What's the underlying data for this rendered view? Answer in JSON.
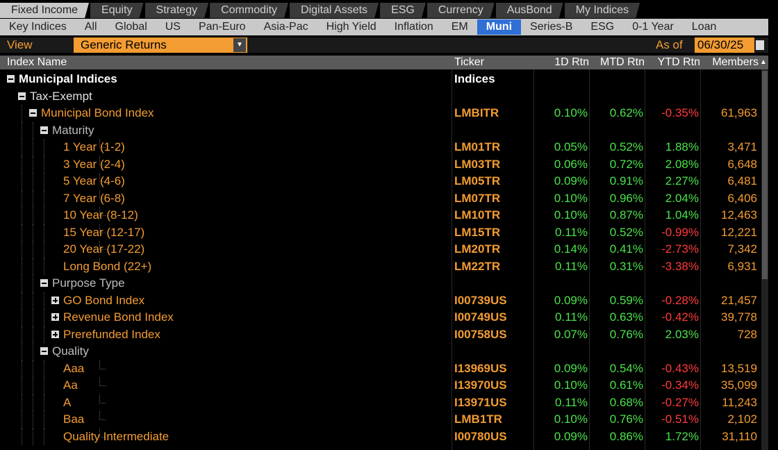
{
  "tabs": [
    "Fixed Income",
    "Equity",
    "Strategy",
    "Commodity",
    "Digital Assets",
    "ESG",
    "Currency",
    "AusBond",
    "My Indices"
  ],
  "selected_tab": "Fixed Income",
  "subtabs": [
    "Key Indices",
    "All",
    "Global",
    "US",
    "Pan-Euro",
    "Asia-Pac",
    "High Yield",
    "Inflation",
    "EM",
    "Muni",
    "Series-B",
    "ESG",
    "0-1 Year",
    "Loan"
  ],
  "selected_subtab": "Muni",
  "view": {
    "label": "View",
    "dropdown": "Generic Returns",
    "as_of_label": "As of",
    "as_of_date": "06/30/25"
  },
  "table": {
    "columns": [
      "Index Name",
      "Ticker",
      "1D Rtn",
      "MTD Rtn",
      "YTD Rtn",
      "Members"
    ],
    "rows": [
      {
        "name": "Municipal Indices",
        "level": 0,
        "toggle": "minus",
        "color": "#ffffff",
        "ticker": "Indices"
      },
      {
        "name": "Tax-Exempt",
        "level": 1,
        "toggle": "minus",
        "color": "#e0e0e0"
      },
      {
        "name": "Municipal Bond Index",
        "level": 2,
        "toggle": "minus",
        "color": "#f39c32",
        "ticker": "LMBITR",
        "d1": "0.10%",
        "mtd": "0.62%",
        "ytd": "-0.35%",
        "members": "61,963"
      },
      {
        "name": "Maturity",
        "level": 3,
        "toggle": "minus",
        "color": "#bdbdbd"
      },
      {
        "name": "1 Year (1-2)",
        "level": 4,
        "color": "#f39c32",
        "ticker": "LM01TR",
        "d1": "0.05%",
        "mtd": "0.52%",
        "ytd": "1.88%",
        "members": "3,471"
      },
      {
        "name": "3 Year (2-4)",
        "level": 4,
        "color": "#f39c32",
        "ticker": "LM03TR",
        "d1": "0.06%",
        "mtd": "0.72%",
        "ytd": "2.08%",
        "members": "6,648"
      },
      {
        "name": "5 Year (4-6)",
        "level": 4,
        "color": "#f39c32",
        "ticker": "LM05TR",
        "d1": "0.09%",
        "mtd": "0.91%",
        "ytd": "2.27%",
        "members": "6,481"
      },
      {
        "name": "7 Year (6-8)",
        "level": 4,
        "color": "#f39c32",
        "ticker": "LM07TR",
        "d1": "0.10%",
        "mtd": "0.96%",
        "ytd": "2.04%",
        "members": "6,406"
      },
      {
        "name": "10 Year (8-12)",
        "level": 4,
        "color": "#f39c32",
        "ticker": "LM10TR",
        "d1": "0.10%",
        "mtd": "0.87%",
        "ytd": "1.04%",
        "members": "12,463"
      },
      {
        "name": "15 Year (12-17)",
        "level": 4,
        "color": "#f39c32",
        "ticker": "LM15TR",
        "d1": "0.11%",
        "mtd": "0.52%",
        "ytd": "-0.99%",
        "members": "12,221"
      },
      {
        "name": "20 Year (17-22)",
        "level": 4,
        "color": "#f39c32",
        "ticker": "LM20TR",
        "d1": "0.14%",
        "mtd": "0.41%",
        "ytd": "-2.73%",
        "members": "7,342"
      },
      {
        "name": "Long Bond (22+)",
        "level": 4,
        "color": "#f39c32",
        "ticker": "LM22TR",
        "d1": "0.11%",
        "mtd": "0.31%",
        "ytd": "-3.38%",
        "members": "6,931"
      },
      {
        "name": "Purpose Type",
        "level": 3,
        "toggle": "minus",
        "color": "#bdbdbd"
      },
      {
        "name": "GO Bond Index",
        "level": 4,
        "toggle": "plus",
        "color": "#f39c32",
        "ticker": "I00739US",
        "d1": "0.09%",
        "mtd": "0.59%",
        "ytd": "-0.28%",
        "members": "21,457"
      },
      {
        "name": "Revenue Bond Index",
        "level": 4,
        "toggle": "plus",
        "color": "#f39c32",
        "ticker": "I00749US",
        "d1": "0.11%",
        "mtd": "0.63%",
        "ytd": "-0.42%",
        "members": "39,778"
      },
      {
        "name": "Prerefunded Index",
        "level": 4,
        "toggle": "plus",
        "color": "#f39c32",
        "ticker": "I00758US",
        "d1": "0.07%",
        "mtd": "0.76%",
        "ytd": "2.03%",
        "members": "728"
      },
      {
        "name": "Quality",
        "level": 3,
        "toggle": "minus",
        "color": "#bdbdbd"
      },
      {
        "name": "Aaa",
        "level": 4,
        "color": "#f39c32",
        "ticker": "I13969US",
        "d1": "0.09%",
        "mtd": "0.54%",
        "ytd": "-0.43%",
        "members": "13,519"
      },
      {
        "name": "Aa",
        "level": 4,
        "color": "#f39c32",
        "ticker": "I13970US",
        "d1": "0.10%",
        "mtd": "0.61%",
        "ytd": "-0.34%",
        "members": "35,099"
      },
      {
        "name": "A",
        "level": 4,
        "color": "#f39c32",
        "ticker": "I13971US",
        "d1": "0.11%",
        "mtd": "0.68%",
        "ytd": "-0.27%",
        "members": "11,243"
      },
      {
        "name": "Baa",
        "level": 4,
        "color": "#f39c32",
        "ticker": "LMB1TR",
        "d1": "0.10%",
        "mtd": "0.76%",
        "ytd": "-0.51%",
        "members": "2,102"
      },
      {
        "name": "Quality Intermediate",
        "level": 4,
        "color": "#f39c32",
        "ticker": "I00780US",
        "d1": "0.09%",
        "mtd": "0.86%",
        "ytd": "1.72%",
        "members": "31,110"
      }
    ]
  }
}
